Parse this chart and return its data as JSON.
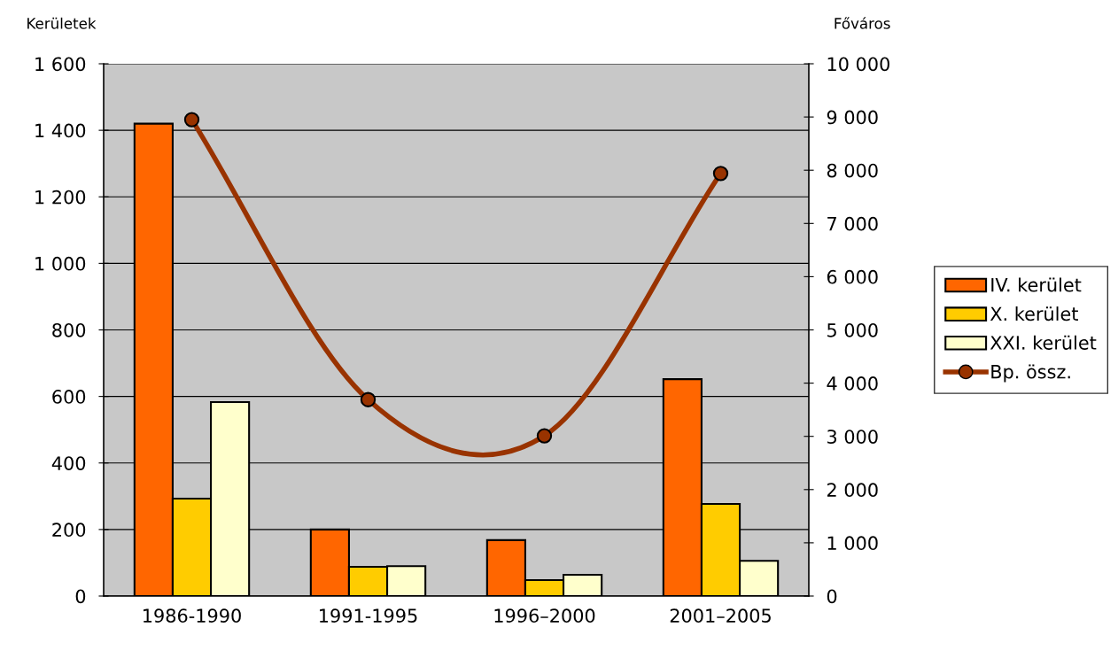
{
  "chart_data": {
    "type": "bar",
    "ylabel": "Kerületek",
    "y2label": "Főváros",
    "categories": [
      "1986-1990",
      "1991-1995",
      "1996–2000",
      "2001–2005"
    ],
    "series": [
      {
        "name": "IV. kerület",
        "color": "#ff6600",
        "values": [
          1420,
          200,
          168,
          652
        ]
      },
      {
        "name": "X. kerület",
        "color": "#ffcc00",
        "values": [
          293,
          88,
          48,
          277
        ]
      },
      {
        "name": "XXI. kerület",
        "color": "#ffffcc",
        "values": [
          583,
          90,
          64,
          106
        ]
      },
      {
        "name": "Bp. össz.",
        "color": "#993300",
        "type": "line",
        "axis": "y2",
        "marker": "circle",
        "values": [
          8950,
          3690,
          3010,
          7940
        ]
      }
    ],
    "ylim": [
      0,
      1600
    ],
    "yticks": [
      {
        "value": 0,
        "label": "0"
      },
      {
        "value": 200,
        "label": "200"
      },
      {
        "value": 400,
        "label": "400"
      },
      {
        "value": 600,
        "label": "600"
      },
      {
        "value": 800,
        "label": "800"
      },
      {
        "value": 1000,
        "label": "1 000"
      },
      {
        "value": 1200,
        "label": "1 200"
      },
      {
        "value": 1400,
        "label": "1 400"
      },
      {
        "value": 1600,
        "label": "1 600"
      }
    ],
    "y2lim": [
      0,
      10000
    ],
    "y2ticks": [
      {
        "value": 0,
        "label": "0"
      },
      {
        "value": 1000,
        "label": "1 000"
      },
      {
        "value": 2000,
        "label": "2 000"
      },
      {
        "value": 3000,
        "label": "3 000"
      },
      {
        "value": 4000,
        "label": "4 000"
      },
      {
        "value": 5000,
        "label": "5 000"
      },
      {
        "value": 6000,
        "label": "6 000"
      },
      {
        "value": 7000,
        "label": "7 000"
      },
      {
        "value": 8000,
        "label": "8 000"
      },
      {
        "value": 9000,
        "label": "9 000"
      },
      {
        "value": 10000,
        "label": "10 000"
      }
    ],
    "grid": "y",
    "legend": "right"
  }
}
